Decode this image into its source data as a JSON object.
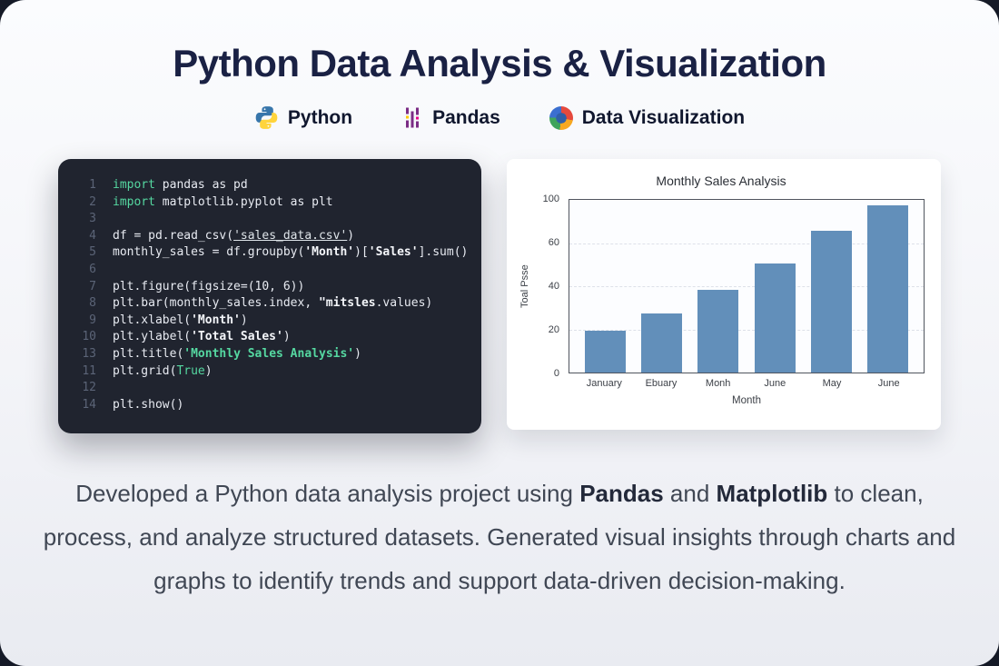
{
  "header": {
    "title": "Python Data Analysis & Visualization"
  },
  "badges": [
    {
      "label": "Python",
      "icon": "python-icon"
    },
    {
      "label": "Pandas",
      "icon": "pandas-icon"
    },
    {
      "label": "Data Visualization",
      "icon": "data-visualization-icon"
    }
  ],
  "code_editor": {
    "lines": [
      {
        "n": "1",
        "parts": [
          {
            "c": "kw",
            "t": "import"
          },
          {
            "c": "p",
            "t": " pandas as pd"
          }
        ]
      },
      {
        "n": "2",
        "parts": [
          {
            "c": "kw",
            "t": "import"
          },
          {
            "c": "p",
            "t": " matplotlib.pyplot as plt"
          }
        ]
      },
      {
        "n": "3",
        "parts": []
      },
      {
        "n": "4",
        "parts": [
          {
            "c": "p",
            "t": "df = pd.read_csv("
          },
          {
            "c": "su",
            "t": "'sales_data.csv'"
          },
          {
            "c": "p",
            "t": ")"
          }
        ]
      },
      {
        "n": "5",
        "parts": [
          {
            "c": "p",
            "t": "monthly_sales = df.groupby("
          },
          {
            "c": "sw",
            "t": "'Month'"
          },
          {
            "c": "p",
            "t": ")["
          },
          {
            "c": "sw",
            "t": "'Sales'"
          },
          {
            "c": "p",
            "t": "].sum()"
          }
        ]
      },
      {
        "n": "6",
        "parts": []
      },
      {
        "n": "7",
        "parts": [
          {
            "c": "p",
            "t": "plt.figure(figsize=(10, 6))"
          }
        ]
      },
      {
        "n": "8",
        "parts": [
          {
            "c": "p",
            "t": "plt.bar(monthly_sales.index, "
          },
          {
            "c": "sw",
            "t": "\"mitsles"
          },
          {
            "c": "p",
            "t": ".values)"
          }
        ]
      },
      {
        "n": "9",
        "parts": [
          {
            "c": "p",
            "t": "plt.xlabel("
          },
          {
            "c": "sw",
            "t": "'Month'"
          },
          {
            "c": "p",
            "t": ")"
          }
        ]
      },
      {
        "n": "10",
        "parts": [
          {
            "c": "p",
            "t": "plt.ylabel("
          },
          {
            "c": "sw",
            "t": "'Total Sales'"
          },
          {
            "c": "p",
            "t": ")"
          }
        ]
      },
      {
        "n": "13",
        "parts": [
          {
            "c": "p",
            "t": "plt.title("
          },
          {
            "c": "sg",
            "t": "'Monthly Sales Analysis'"
          },
          {
            "c": "p",
            "t": ")"
          }
        ]
      },
      {
        "n": "11",
        "parts": [
          {
            "c": "p",
            "t": "plt.grid("
          },
          {
            "c": "kw",
            "t": "True"
          },
          {
            "c": "p",
            "t": ")"
          }
        ]
      },
      {
        "n": "12",
        "parts": []
      },
      {
        "n": "14",
        "parts": [
          {
            "c": "p",
            "t": "plt.show()"
          }
        ]
      }
    ]
  },
  "chart_data": {
    "type": "bar",
    "title": "Monthly Sales Analysis",
    "categories": [
      "January",
      "Ebuary",
      "Monh",
      "June",
      "May",
      "June"
    ],
    "values": [
      24,
      34,
      48,
      63,
      82,
      97
    ],
    "ylim": [
      0,
      100
    ],
    "ytick_labels": [
      "100",
      "60",
      "40",
      "20",
      "0"
    ],
    "xlabel": "Month",
    "ylabel": "Toal Psse",
    "bar_color": "#628fba",
    "grid": true,
    "legend": false
  },
  "description": {
    "segments": [
      {
        "text": "Developed a Python data analysis project using ",
        "bold": false
      },
      {
        "text": "Pandas",
        "bold": true
      },
      {
        "text": " and ",
        "bold": false
      },
      {
        "text": "Matplotlib",
        "bold": true
      },
      {
        "text": " to clean, process, and analyze structured datasets. Generated visual insights through charts and graphs to identify trends and support data-driven decision-making.",
        "bold": false
      }
    ]
  },
  "colors": {
    "title_navy": "#1a2144",
    "bar_blue": "#628fba",
    "code_background": "#20242f",
    "page_dark_edge": "#151a27"
  }
}
